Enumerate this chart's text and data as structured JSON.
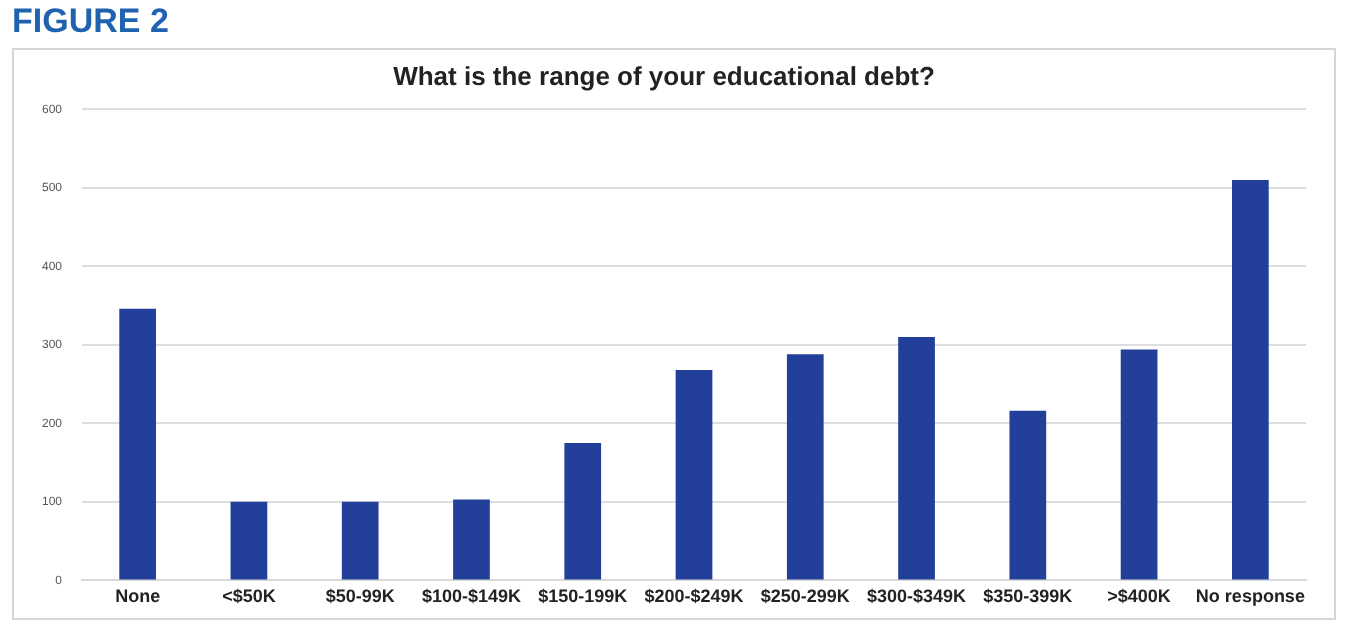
{
  "chart_data": {
    "type": "bar",
    "title": "What is the range of your educational debt?",
    "categories": [
      "None",
      "<$50K",
      "$50-99K",
      "$100-$149K",
      "$150-199K",
      "$200-$249K",
      "$250-299K",
      "$300-$349K",
      "$350-399K",
      ">$400K",
      "No response"
    ],
    "values": [
      346,
      100,
      100,
      103,
      175,
      268,
      288,
      310,
      216,
      294,
      510
    ],
    "color": "#22409a",
    "ylim": [
      0,
      600
    ],
    "yticks": [
      0,
      100,
      200,
      300,
      400,
      500,
      600
    ],
    "grid": "y",
    "annotations": [
      "FIGURE 2"
    ]
  }
}
